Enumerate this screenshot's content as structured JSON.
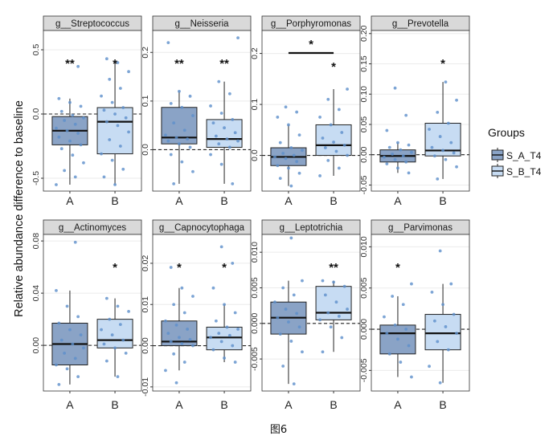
{
  "caption": "图6",
  "colors": {
    "S_A_T4": "#8aa3c6",
    "S_B_T4": "#c7dcf3",
    "point": "#5d8fcb",
    "strip": "#d9d9d9",
    "grid": "#ebebeb"
  },
  "chart_data": {
    "type": "boxplot",
    "ylabel": "Relative abundance difference to baseline",
    "legend": {
      "title": "Groups",
      "entries": [
        "S_A_T4",
        "S_B_T4"
      ],
      "position": "right"
    },
    "facets": [
      {
        "title": "g__Streptococcus",
        "ylim": [
          -0.6,
          0.65
        ],
        "ticks": [
          -0.5,
          0.0,
          0.5
        ],
        "tick_labels": [
          "-0.5",
          "0.0",
          "0.5"
        ],
        "groups": [
          {
            "label": "A",
            "box": {
              "q1": -0.24,
              "median": -0.13,
              "q3": -0.02,
              "whisker_low": -0.55,
              "whisker_high": 0.12
            },
            "significance": "**",
            "points": [
              -0.55,
              -0.49,
              -0.44,
              -0.38,
              -0.32,
              -0.27,
              -0.24,
              -0.21,
              -0.18,
              -0.15,
              -0.13,
              -0.11,
              -0.08,
              -0.05,
              -0.03,
              -0.01,
              0.02,
              0.06,
              0.09,
              0.12,
              0.37
            ]
          },
          {
            "label": "B",
            "box": {
              "q1": -0.31,
              "median": -0.06,
              "q3": 0.05,
              "whisker_low": -0.55,
              "whisker_high": 0.4
            },
            "significance": "*",
            "points": [
              -0.55,
              -0.49,
              -0.43,
              -0.36,
              -0.31,
              -0.25,
              -0.2,
              -0.14,
              -0.09,
              -0.06,
              -0.03,
              0.0,
              0.03,
              0.05,
              0.09,
              0.14,
              0.2,
              0.27,
              0.33,
              0.4,
              0.43
            ]
          }
        ]
      },
      {
        "title": "g__Neisseria",
        "ylim": [
          -0.085,
          0.245
        ],
        "ticks": [
          0.0,
          0.1,
          0.2
        ],
        "tick_labels": [
          "0.0",
          "0.1",
          "0.2"
        ],
        "groups": [
          {
            "label": "A",
            "box": {
              "q1": 0.012,
              "median": 0.025,
              "q3": 0.087,
              "whisker_low": -0.07,
              "whisker_high": 0.12
            },
            "significance": "**",
            "points": [
              -0.07,
              -0.045,
              -0.025,
              -0.01,
              0.005,
              0.012,
              0.018,
              0.022,
              0.025,
              0.03,
              0.04,
              0.055,
              0.07,
              0.087,
              0.095,
              0.11,
              0.12,
              0.22
            ]
          },
          {
            "label": "B",
            "box": {
              "q1": 0.005,
              "median": 0.022,
              "q3": 0.062,
              "whisker_low": -0.07,
              "whisker_high": 0.14
            },
            "significance": "**",
            "points": [
              -0.07,
              -0.03,
              -0.01,
              0.005,
              0.012,
              0.018,
              0.022,
              0.028,
              0.035,
              0.045,
              0.055,
              0.062,
              0.075,
              0.09,
              0.115,
              0.14,
              0.23
            ]
          }
        ]
      },
      {
        "title": "g__Porphyromonas",
        "ylim": [
          -0.07,
          0.245
        ],
        "ticks": [
          0.0,
          0.1,
          0.2
        ],
        "tick_labels": [
          "0.0",
          "0.1",
          "0.2"
        ],
        "groups": [
          {
            "label": "A",
            "box": {
              "q1": -0.02,
              "median": -0.003,
              "q3": 0.015,
              "whisker_low": -0.06,
              "whisker_high": 0.06
            },
            "significance": "",
            "points": [
              -0.06,
              -0.045,
              -0.035,
              -0.025,
              -0.02,
              -0.012,
              -0.006,
              -0.003,
              0.0,
              0.004,
              0.01,
              0.015,
              0.025,
              0.04,
              0.06,
              0.075,
              0.085,
              0.095
            ]
          },
          {
            "label": "B",
            "box": {
              "q1": 0.0,
              "median": 0.02,
              "q3": 0.06,
              "whisker_low": -0.04,
              "whisker_high": 0.13
            },
            "significance": "*",
            "points": [
              -0.04,
              -0.025,
              -0.01,
              0.0,
              0.008,
              0.015,
              0.02,
              0.026,
              0.034,
              0.045,
              0.06,
              0.075,
              0.09,
              0.11,
              0.13
            ]
          }
        ],
        "bracket": {
          "from": "A",
          "to": "B",
          "label": "*",
          "y": 0.18
        }
      },
      {
        "title": "g__Prevotella",
        "ylim": [
          -0.06,
          0.205
        ],
        "ticks": [
          -0.05,
          0.0,
          0.05,
          0.1,
          0.15,
          0.2
        ],
        "tick_labels": [
          "-0.05",
          "0.00",
          "0.05",
          "0.10",
          "0.15",
          "0.20"
        ],
        "groups": [
          {
            "label": "A",
            "box": {
              "q1": -0.012,
              "median": -0.002,
              "q3": 0.008,
              "whisker_low": -0.03,
              "whisker_high": 0.02
            },
            "significance": "",
            "points": [
              -0.03,
              -0.022,
              -0.015,
              -0.012,
              -0.008,
              -0.004,
              -0.002,
              0.001,
              0.004,
              0.008,
              0.012,
              0.016,
              0.02,
              0.04,
              0.065,
              0.11
            ]
          },
          {
            "label": "B",
            "box": {
              "q1": -0.002,
              "median": 0.007,
              "q3": 0.052,
              "whisker_low": -0.04,
              "whisker_high": 0.12
            },
            "significance": "*",
            "points": [
              -0.04,
              -0.02,
              -0.008,
              -0.002,
              0.003,
              0.007,
              0.012,
              0.02,
              0.03,
              0.042,
              0.052,
              0.07,
              0.09,
              0.12
            ]
          }
        ]
      },
      {
        "title": "g__Actinomyces",
        "ylim": [
          -0.035,
          0.085
        ],
        "ticks": [
          0.0,
          0.04,
          0.08
        ],
        "tick_labels": [
          "0.00",
          "0.04",
          "0.08"
        ],
        "groups": [
          {
            "label": "A",
            "box": {
              "q1": -0.015,
              "median": 0.001,
              "q3": 0.017,
              "whisker_low": -0.03,
              "whisker_high": 0.042
            },
            "significance": "",
            "points": [
              -0.03,
              -0.024,
              -0.018,
              -0.015,
              -0.01,
              -0.006,
              -0.002,
              0.001,
              0.004,
              0.008,
              0.012,
              0.017,
              0.022,
              0.03,
              0.042,
              0.079
            ]
          },
          {
            "label": "B",
            "box": {
              "q1": -0.002,
              "median": 0.004,
              "q3": 0.02,
              "whisker_low": -0.024,
              "whisker_high": 0.036
            },
            "significance": "*",
            "points": [
              -0.024,
              -0.012,
              -0.006,
              -0.002,
              0.001,
              0.004,
              0.008,
              0.012,
              0.016,
              0.02,
              0.026,
              0.03,
              0.036
            ]
          }
        ]
      },
      {
        "title": "g__Capnocytophaga",
        "ylim": [
          -0.011,
          0.027
        ],
        "ticks": [
          -0.01,
          0.0,
          0.01,
          0.02
        ],
        "tick_labels": [
          "-0.01",
          "0.00",
          "0.01",
          "0.02"
        ],
        "groups": [
          {
            "label": "A",
            "box": {
              "q1": 0.0,
              "median": 0.001,
              "q3": 0.006,
              "whisker_low": -0.006,
              "whisker_high": 0.014
            },
            "significance": "*",
            "points": [
              -0.009,
              -0.006,
              -0.004,
              -0.002,
              0.0,
              0.0005,
              0.001,
              0.0015,
              0.002,
              0.003,
              0.004,
              0.005,
              0.006,
              0.008,
              0.01,
              0.012,
              0.014,
              0.019
            ]
          },
          {
            "label": "B",
            "box": {
              "q1": -0.001,
              "median": 0.002,
              "q3": 0.0045,
              "whisker_low": -0.004,
              "whisker_high": 0.01
            },
            "significance": "*",
            "points": [
              -0.004,
              -0.003,
              -0.001,
              0.0,
              0.001,
              0.002,
              0.0025,
              0.003,
              0.004,
              0.0045,
              0.006,
              0.008,
              0.01,
              0.014,
              0.02,
              0.024
            ]
          }
        ]
      },
      {
        "title": "g__Leptotrichia",
        "ylim": [
          -0.0095,
          0.0125
        ],
        "ticks": [
          -0.005,
          0.0,
          0.005,
          0.01
        ],
        "tick_labels": [
          "-0.005",
          "0.000",
          "0.005",
          "0.010"
        ],
        "groups": [
          {
            "label": "A",
            "box": {
              "q1": -0.0015,
              "median": 0.0008,
              "q3": 0.003,
              "whisker_low": -0.0085,
              "whisker_high": 0.006
            },
            "significance": "",
            "points": [
              -0.0085,
              -0.006,
              -0.004,
              -0.0025,
              -0.0015,
              -0.0005,
              0.0002,
              0.0008,
              0.0014,
              0.002,
              0.003,
              0.004,
              0.005,
              0.006,
              0.012
            ]
          },
          {
            "label": "B",
            "box": {
              "q1": 0.0005,
              "median": 0.0015,
              "q3": 0.0052,
              "whisker_low": -0.004,
              "whisker_high": 0.006
            },
            "significance": "**",
            "points": [
              -0.004,
              -0.002,
              -0.0005,
              0.0005,
              0.001,
              0.0015,
              0.002,
              0.003,
              0.004,
              0.0052,
              0.0058,
              0.006
            ]
          }
        ]
      },
      {
        "title": "g__Parvimonas",
        "ylim": [
          -0.0075,
          0.0115
        ],
        "ticks": [
          -0.005,
          0.0,
          0.005,
          0.01
        ],
        "tick_labels": [
          "-0.005",
          "0.000",
          "0.005",
          "0.010"
        ],
        "groups": [
          {
            "label": "A",
            "box": {
              "q1": -0.003,
              "median": -0.0005,
              "q3": 0.0005,
              "whisker_low": -0.0058,
              "whisker_high": 0.004
            },
            "significance": "*",
            "points": [
              -0.0058,
              -0.004,
              -0.003,
              -0.002,
              -0.0012,
              -0.0005,
              0.0,
              0.0005,
              0.0015,
              0.003,
              0.004,
              0.0055
            ]
          },
          {
            "label": "B",
            "box": {
              "q1": -0.0025,
              "median": -0.0005,
              "q3": 0.0018,
              "whisker_low": -0.0065,
              "whisker_high": 0.0055
            },
            "significance": "",
            "points": [
              -0.0065,
              -0.0045,
              -0.0025,
              -0.0015,
              -0.0005,
              0.0003,
              0.001,
              0.0018,
              0.003,
              0.0045,
              0.0055,
              0.0095
            ]
          }
        ]
      }
    ]
  }
}
